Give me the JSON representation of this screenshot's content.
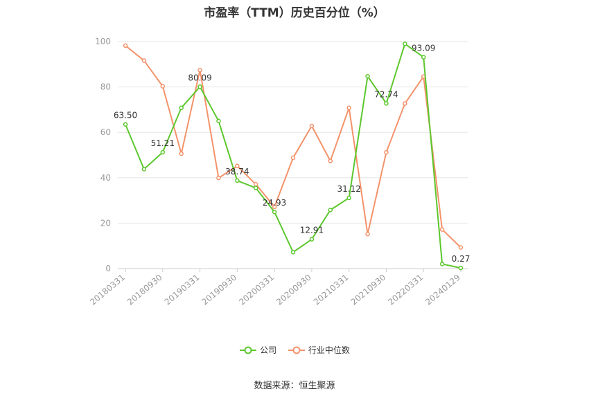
{
  "chart_data": {
    "type": "line",
    "title": "市盈率（TTM）历史百分位（%）",
    "xlabel": "",
    "ylabel": "",
    "ylim": [
      0,
      100
    ],
    "yticks": [
      0,
      20,
      40,
      60,
      80,
      100
    ],
    "x_tick_labels": [
      "20180331",
      "20180930",
      "20190331",
      "20190930",
      "20200331",
      "20200930",
      "20210331",
      "20210930",
      "20220331",
      "20240129"
    ],
    "grid": true,
    "legend_position": "bottom",
    "source": "数据来源：恒生聚源",
    "series": [
      {
        "name": "公司",
        "color": "#5cc72d",
        "values": [
          63.5,
          43.8,
          51.21,
          70.8,
          80.09,
          65.0,
          38.74,
          35.5,
          24.93,
          7.2,
          12.91,
          25.8,
          31.12,
          84.7,
          72.74,
          99.0,
          93.09,
          2.0,
          0.27
        ],
        "labels": {
          "0": "63.50",
          "2": "51.21",
          "4": "80.09",
          "6": "38.74",
          "8": "24.93",
          "10": "12.91",
          "12": "31.12",
          "14": "72.74",
          "16": "93.09",
          "18": "0.27"
        }
      },
      {
        "name": "行业中位数",
        "color": "#f4926a",
        "values": [
          98.2,
          91.6,
          80.3,
          50.6,
          87.4,
          39.9,
          45.2,
          37.1,
          27.2,
          48.8,
          62.8,
          47.4,
          70.8,
          15.2,
          51.2,
          72.7,
          84.6,
          17.2,
          9.3
        ]
      }
    ]
  }
}
